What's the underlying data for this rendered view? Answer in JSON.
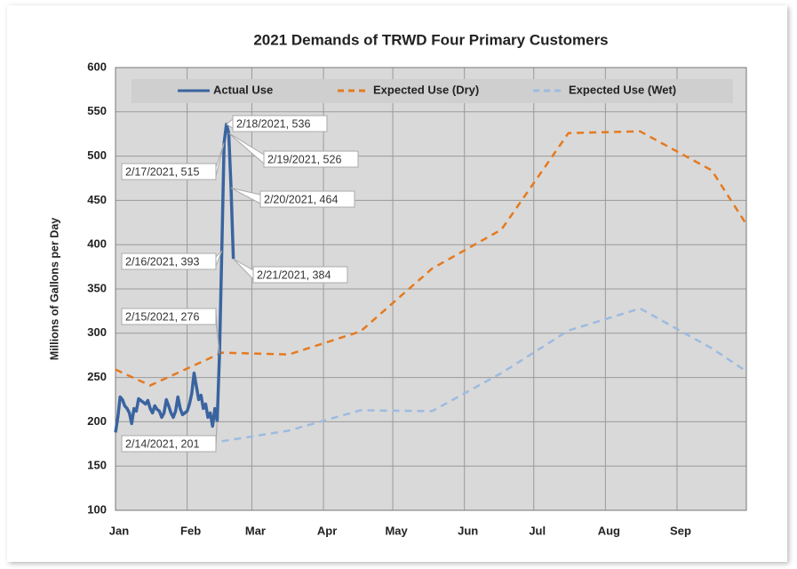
{
  "chart_data": {
    "type": "line",
    "title": "2021 Demands of TRWD Four Primary Customers",
    "ylabel": "Millions of Gallons per Day",
    "xlim": [
      0,
      273
    ],
    "xticks": [
      {
        "value": 0,
        "label": "Jan"
      },
      {
        "value": 31,
        "label": "Feb"
      },
      {
        "value": 59,
        "label": "Mar"
      },
      {
        "value": 90,
        "label": "Apr"
      },
      {
        "value": 120,
        "label": "May"
      },
      {
        "value": 151,
        "label": "Jun"
      },
      {
        "value": 181,
        "label": "Jul"
      },
      {
        "value": 212,
        "label": "Aug"
      },
      {
        "value": 243,
        "label": "Sep"
      }
    ],
    "ylim": [
      100,
      600
    ],
    "yticks": [
      100,
      150,
      200,
      250,
      300,
      350,
      400,
      450,
      500,
      550,
      600
    ],
    "grid": true,
    "legend": "top",
    "series": [
      {
        "name": "Actual Use",
        "color": "#3a64a0",
        "dash": false,
        "x": [
          0,
          1,
          2,
          3,
          4,
          5,
          6,
          7,
          8,
          9,
          10,
          11,
          12,
          13,
          14,
          15,
          16,
          17,
          18,
          19,
          20,
          21,
          22,
          23,
          24,
          25,
          26,
          27,
          28,
          29,
          30,
          31,
          32,
          33,
          34,
          35,
          36,
          37,
          38,
          39,
          40,
          41,
          42,
          43,
          44,
          45,
          46,
          47,
          48,
          49,
          50,
          51
        ],
        "values": [
          188,
          205,
          228,
          225,
          218,
          215,
          210,
          198,
          215,
          212,
          226,
          224,
          222,
          220,
          224,
          215,
          210,
          218,
          214,
          212,
          205,
          210,
          225,
          218,
          210,
          205,
          212,
          228,
          215,
          208,
          210,
          212,
          220,
          232,
          255,
          240,
          225,
          230,
          215,
          220,
          205,
          210,
          195,
          215,
          201,
          276,
          393,
          515,
          536,
          526,
          464,
          384
        ]
      },
      {
        "name": "Expected Use (Dry)",
        "color": "#e57a1f",
        "dash": true,
        "x": [
          0,
          15,
          46,
          75,
          106,
          137,
          167,
          196,
          227,
          258,
          273
        ],
        "values": [
          259,
          241,
          278,
          276,
          302,
          373,
          417,
          526,
          528,
          484,
          423
        ]
      },
      {
        "name": "Expected Use (Wet)",
        "color": "#9dbbe0",
        "dash": true,
        "x": [
          46,
          75,
          106,
          137,
          167,
          196,
          227,
          258,
          273
        ],
        "values": [
          178,
          190,
          213,
          212,
          255,
          303,
          328,
          283,
          257
        ]
      }
    ],
    "annotations": [
      "2/14/2021, 201",
      "2/15/2021, 276",
      "2/16/2021, 393",
      "2/17/2021, 515",
      "2/18/2021, 536",
      "2/19/2021, 526",
      "2/20/2021, 464",
      "2/21/2021, 384"
    ]
  }
}
